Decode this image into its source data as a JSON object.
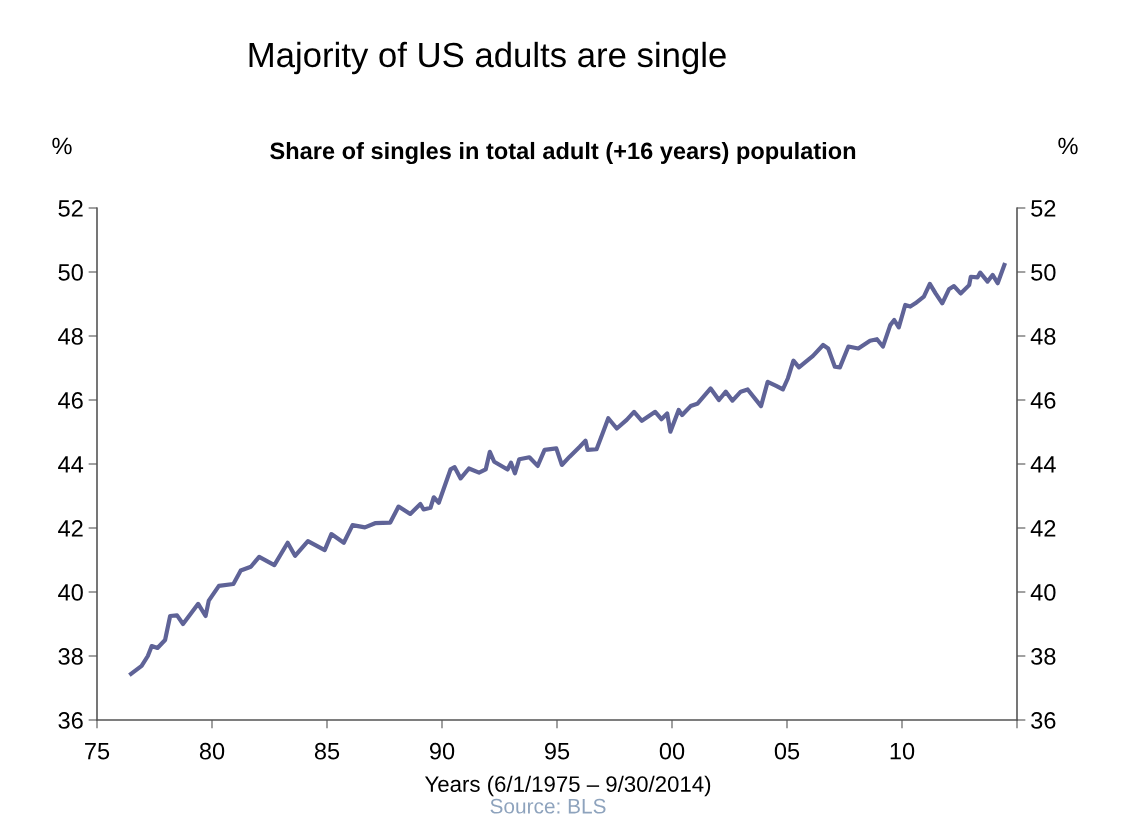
{
  "chart_data": {
    "type": "line",
    "title": "Majority of US adults are single",
    "subtitle": "Share of singles in total adult (+16 years) population",
    "xlabel": "Years (6/1/1975 – 9/30/2014)",
    "ylabel": "%",
    "y2label": "%",
    "annotations": [
      "Source: BLS"
    ],
    "x": [
      1976.48,
      1976.94,
      1977.21,
      1977.38,
      1977.63,
      1977.96,
      1978.18,
      1978.48,
      1978.74,
      1979.4,
      1979.72,
      1979.86,
      1980.3,
      1980.93,
      1981.25,
      1981.69,
      1982.05,
      1982.71,
      1983.29,
      1983.61,
      1984.17,
      1984.9,
      1985.19,
      1985.73,
      1986.11,
      1986.65,
      1987.09,
      1987.75,
      1988.11,
      1988.62,
      1989.06,
      1989.2,
      1989.5,
      1989.64,
      1989.86,
      1990.37,
      1990.55,
      1990.81,
      1991.17,
      1991.61,
      1991.9,
      1992.08,
      1992.27,
      1992.85,
      1993.0,
      1993.17,
      1993.36,
      1993.8,
      1994.16,
      1994.46,
      1994.97,
      1995.21,
      1995.55,
      1995.99,
      1996.24,
      1996.33,
      1996.72,
      1997.01,
      1997.23,
      1997.6,
      1998.03,
      1998.35,
      1998.69,
      1999.27,
      1999.54,
      1999.79,
      1999.93,
      2000.29,
      2000.44,
      2000.81,
      2001.1,
      2001.68,
      2002.04,
      2002.34,
      2002.63,
      2002.99,
      2003.29,
      2003.87,
      2004.16,
      2004.53,
      2004.82,
      2005.04,
      2005.28,
      2005.52,
      2005.77,
      2006.13,
      2006.57,
      2006.79,
      2007.08,
      2007.3,
      2007.67,
      2008.1,
      2008.61,
      2008.91,
      2009.17,
      2009.49,
      2009.66,
      2009.86,
      2010.14,
      2010.36,
      2010.58,
      2010.95,
      2011.21,
      2011.46,
      2011.75,
      2012.04,
      2012.26,
      2012.55,
      2012.92,
      2012.99,
      2013.28,
      2013.4,
      2013.72,
      2013.94,
      2014.16,
      2014.45
    ],
    "series": [
      {
        "color": "#5f6397",
        "values": [
          37.44,
          37.69,
          38.0,
          38.31,
          38.25,
          38.5,
          39.25,
          39.27,
          39.0,
          39.63,
          39.25,
          39.73,
          40.19,
          40.25,
          40.67,
          40.79,
          41.1,
          40.84,
          41.54,
          41.13,
          41.59,
          41.31,
          41.81,
          41.54,
          42.09,
          42.02,
          42.15,
          42.17,
          42.67,
          42.44,
          42.75,
          42.58,
          42.63,
          42.96,
          42.79,
          43.83,
          43.9,
          43.55,
          43.86,
          43.73,
          43.83,
          44.38,
          44.07,
          43.83,
          44.04,
          43.71,
          44.15,
          44.21,
          43.94,
          44.44,
          44.49,
          43.97,
          44.23,
          44.54,
          44.73,
          44.44,
          44.46,
          45.01,
          45.43,
          45.11,
          45.38,
          45.63,
          45.35,
          45.63,
          45.4,
          45.58,
          45.01,
          45.69,
          45.53,
          45.81,
          45.88,
          46.36,
          46.0,
          46.26,
          45.98,
          46.26,
          46.33,
          45.81,
          46.57,
          46.44,
          46.33,
          46.68,
          47.23,
          47.02,
          47.17,
          47.38,
          47.72,
          47.61,
          47.04,
          47.02,
          47.67,
          47.61,
          47.85,
          47.9,
          47.67,
          48.34,
          48.5,
          48.27,
          48.97,
          48.92,
          49.02,
          49.23,
          49.63,
          49.33,
          49.02,
          49.46,
          49.56,
          49.33,
          49.59,
          49.85,
          49.83,
          49.98,
          49.7,
          49.91,
          49.65,
          50.22
        ]
      }
    ],
    "xlim": [
      1975,
      2015
    ],
    "xticks": [
      {
        "value": 1975,
        "label": "75"
      },
      {
        "value": 1980,
        "label": "80"
      },
      {
        "value": 1985,
        "label": "85"
      },
      {
        "value": 1990,
        "label": "90"
      },
      {
        "value": 1995,
        "label": "95"
      },
      {
        "value": 2000,
        "label": "00"
      },
      {
        "value": 2005,
        "label": "05"
      },
      {
        "value": 2010,
        "label": "10"
      },
      {
        "value": 2015,
        "label": null
      }
    ],
    "ylim": [
      36,
      52
    ],
    "yticks": [
      36,
      38,
      40,
      42,
      44,
      46,
      48,
      50,
      52
    ],
    "y2lim": [
      36,
      52
    ],
    "y2ticks": [
      36,
      38,
      40,
      42,
      44,
      46,
      48,
      50,
      52
    ],
    "grid": false,
    "legend": false,
    "marker": "none",
    "line_style": "solid"
  }
}
